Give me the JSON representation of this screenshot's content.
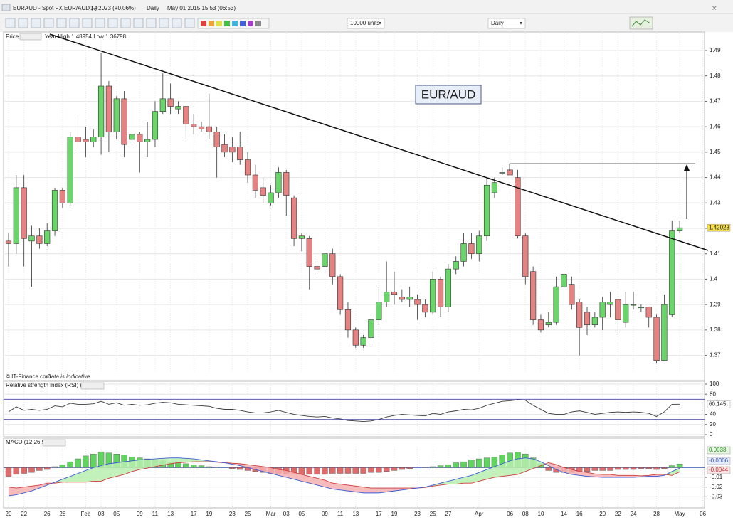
{
  "header": {
    "symbol": "EURAUD - Spot FX EUR/AUD (-)",
    "price": "1.42023 (+0.06%)",
    "period": "Daily",
    "time": "May 01 2015 15:53 (06:53)",
    "units": "10000 units",
    "interval": "Daily"
  },
  "chart_data": [
    {
      "type": "candlestick",
      "label": "Price",
      "subtitle": "Year High 1.48954 Low 1.36798",
      "title": "EUR/AUD",
      "source": "© IT-Finance.com",
      "source_note": "Data is indicative",
      "up_color": "#6ad66a",
      "down_color": "#e58282",
      "grid": true,
      "ylim": [
        1.364,
        1.497
      ],
      "yticks": [
        1.37,
        1.38,
        1.39,
        1.4,
        1.41,
        1.42,
        1.43,
        1.44,
        1.45,
        1.46,
        1.47,
        1.48,
        1.49
      ],
      "categories": [
        "20",
        null,
        "22",
        null,
        null,
        "26",
        null,
        "28",
        null,
        null,
        "Feb",
        null,
        "03",
        null,
        "05",
        null,
        null,
        "09",
        null,
        "11",
        null,
        "13",
        null,
        null,
        "17",
        null,
        "19",
        null,
        null,
        "23",
        null,
        "25",
        null,
        null,
        "Mar",
        null,
        "03",
        null,
        "05",
        null,
        null,
        "09",
        null,
        "11",
        null,
        "13",
        null,
        null,
        "17",
        null,
        "19",
        null,
        null,
        "23",
        null,
        "25",
        null,
        "27",
        null,
        null,
        null,
        "Apr",
        null,
        null,
        null,
        "06",
        null,
        "08",
        null,
        "10",
        null,
        null,
        "14",
        null,
        "16",
        null,
        null,
        "20",
        null,
        "22",
        null,
        "24",
        null,
        null,
        "28",
        null,
        null,
        "May",
        null,
        null,
        "06"
      ],
      "open": [
        1.415,
        1.414,
        1.436,
        1.415,
        1.417,
        1.414,
        1.419,
        1.435,
        1.43,
        1.456,
        1.455,
        1.454,
        1.456,
        1.476,
        1.458,
        1.471,
        1.455,
        1.457,
        1.454,
        1.455,
        1.466,
        1.471,
        1.467,
        1.468,
        1.461,
        1.46,
        1.46,
        1.458,
        1.453,
        1.452,
        1.452,
        1.447,
        1.441,
        1.436,
        1.43,
        1.434,
        1.442,
        1.432,
        1.416,
        1.416,
        1.405,
        1.405,
        1.41,
        1.401,
        1.388,
        1.38,
        1.374,
        1.377,
        1.384,
        1.391,
        1.395,
        1.393,
        1.392,
        1.392,
        1.39,
        1.387,
        1.4,
        1.389,
        1.404,
        1.407,
        1.414,
        1.41,
        1.417,
        1.434,
        1.442,
        1.443,
        1.44,
        1.417,
        1.403,
        1.384,
        1.382,
        1.383,
        1.397,
        1.398,
        1.391,
        1.387,
        1.382,
        1.385,
        1.39,
        1.392,
        1.383,
        1.39,
        1.389,
        1.389,
        1.385,
        1.368,
        1.386,
        1.419,
        null,
        null,
        null
      ],
      "high": [
        1.418,
        1.441,
        1.441,
        1.421,
        1.42,
        1.422,
        1.436,
        1.436,
        1.458,
        1.465,
        1.46,
        1.459,
        1.489,
        1.478,
        1.472,
        1.474,
        1.458,
        1.458,
        1.462,
        1.47,
        1.481,
        1.477,
        1.47,
        1.468,
        1.465,
        1.462,
        1.473,
        1.46,
        1.457,
        1.456,
        1.458,
        1.45,
        1.445,
        1.44,
        1.437,
        1.444,
        1.443,
        1.433,
        1.418,
        1.417,
        1.407,
        1.412,
        1.412,
        1.402,
        1.391,
        1.381,
        1.378,
        1.386,
        1.397,
        1.407,
        1.403,
        1.396,
        1.397,
        1.394,
        1.392,
        1.403,
        1.401,
        1.406,
        1.409,
        1.418,
        1.418,
        1.419,
        1.44,
        1.44,
        1.444,
        1.445,
        1.443,
        1.418,
        1.405,
        1.386,
        1.387,
        1.401,
        1.404,
        1.401,
        1.392,
        1.389,
        1.387,
        1.393,
        1.395,
        1.393,
        1.395,
        1.395,
        1.39,
        1.389,
        1.386,
        1.394,
        1.423,
        1.423,
        null,
        null,
        null
      ],
      "low": [
        1.405,
        1.41,
        1.405,
        1.397,
        1.412,
        1.413,
        1.417,
        1.428,
        1.429,
        1.451,
        1.448,
        1.452,
        1.449,
        1.45,
        1.455,
        1.448,
        1.452,
        1.442,
        1.448,
        1.452,
        1.465,
        1.465,
        1.465,
        1.455,
        1.457,
        1.458,
        1.455,
        1.44,
        1.448,
        1.446,
        1.445,
        1.438,
        1.432,
        1.43,
        1.429,
        1.432,
        1.425,
        1.413,
        1.411,
        1.396,
        1.402,
        1.403,
        1.398,
        1.386,
        1.377,
        1.373,
        1.373,
        1.375,
        1.382,
        1.389,
        1.39,
        1.391,
        1.389,
        1.384,
        1.385,
        1.386,
        1.385,
        1.387,
        1.402,
        1.405,
        1.408,
        1.407,
        1.415,
        1.432,
        1.441,
        1.438,
        1.416,
        1.398,
        1.382,
        1.379,
        1.381,
        1.382,
        1.39,
        1.388,
        1.37,
        1.378,
        1.381,
        1.38,
        1.385,
        1.378,
        1.381,
        1.388,
        1.387,
        1.381,
        1.367,
        1.368,
        1.385,
        1.418,
        null,
        null,
        null
      ],
      "close": [
        1.414,
        1.436,
        1.416,
        1.417,
        1.414,
        1.419,
        1.435,
        1.43,
        1.456,
        1.454,
        1.454,
        1.456,
        1.476,
        1.458,
        1.471,
        1.453,
        1.457,
        1.454,
        1.455,
        1.466,
        1.471,
        1.468,
        1.468,
        1.461,
        1.46,
        1.459,
        1.458,
        1.452,
        1.45,
        1.45,
        1.447,
        1.441,
        1.435,
        1.433,
        1.434,
        1.442,
        1.433,
        1.416,
        1.417,
        1.405,
        1.404,
        1.41,
        1.401,
        1.388,
        1.38,
        1.374,
        1.377,
        1.384,
        1.391,
        1.395,
        1.394,
        1.392,
        1.393,
        1.39,
        1.387,
        1.4,
        1.389,
        1.404,
        1.407,
        1.414,
        1.41,
        1.417,
        1.437,
        1.438,
        1.442,
        1.441,
        1.417,
        1.401,
        1.384,
        1.38,
        1.383,
        1.397,
        1.402,
        1.39,
        1.381,
        1.382,
        1.385,
        1.391,
        1.391,
        1.384,
        1.39,
        1.39,
        1.389,
        1.385,
        1.368,
        1.39,
        1.419,
        1.42023,
        null,
        null,
        null
      ]
    },
    {
      "type": "line",
      "title": "Relative strength index (RSI) (14)",
      "color": "#3a3a3a",
      "level_color": "#4040b0",
      "ylim": [
        0,
        100
      ],
      "yticks": [
        0,
        20,
        40,
        80,
        100
      ],
      "levels": [
        30,
        70
      ],
      "values": [
        45,
        55,
        48,
        50,
        48,
        50,
        57,
        55,
        62,
        60,
        60,
        61,
        66,
        60,
        63,
        58,
        60,
        58,
        59,
        62,
        64,
        63,
        60,
        59,
        58,
        57,
        56,
        52,
        50,
        50,
        48,
        45,
        43,
        43,
        45,
        48,
        44,
        40,
        38,
        36,
        35,
        36,
        33,
        31,
        28,
        27,
        26,
        27,
        30,
        35,
        38,
        40,
        39,
        38,
        37,
        42,
        40,
        45,
        47,
        50,
        49,
        52,
        58,
        62,
        66,
        67,
        69,
        68,
        58,
        50,
        42,
        40,
        40,
        45,
        47,
        44,
        40,
        42,
        44,
        45,
        44,
        45,
        44,
        42,
        36,
        45,
        60,
        60.145,
        null,
        null,
        null
      ]
    },
    {
      "type": "macd",
      "title": "MACD (12,26,9)",
      "up_color": "#5fd45f",
      "down_color": "#e06a6a",
      "macd_color": "#3b5bd6",
      "signal_color": "#d03a3a",
      "ylim": [
        -0.04,
        0.02
      ],
      "yticks": [
        -0.01,
        -0.02,
        -0.03
      ],
      "histogram": [
        -0.009,
        -0.007,
        -0.006,
        -0.005,
        -0.003,
        -0.002,
        0.001,
        0.003,
        0.006,
        0.009,
        0.012,
        0.014,
        0.016,
        0.015,
        0.014,
        0.013,
        0.011,
        0.01,
        0.009,
        0.008,
        0.007,
        0.006,
        0.005,
        0.004,
        0.003,
        0.002,
        0.001,
        0.0005,
        0,
        -0.001,
        -0.002,
        -0.003,
        -0.004,
        -0.005,
        -0.006,
        -0.006,
        -0.007,
        -0.007,
        -0.007,
        -0.007,
        -0.007,
        -0.007,
        -0.006,
        -0.006,
        -0.006,
        -0.006,
        -0.006,
        -0.005,
        -0.005,
        -0.004,
        -0.003,
        -0.002,
        -0.001,
        0,
        0.0005,
        0.001,
        0.002,
        0.003,
        0.005,
        0.006,
        0.008,
        0.009,
        0.01,
        0.011,
        0.013,
        0.015,
        0.016,
        0.014,
        0.01,
        0.004,
        -0.003,
        -0.005,
        -0.005,
        -0.005,
        -0.004,
        -0.004,
        -0.003,
        -0.003,
        -0.003,
        -0.002,
        -0.002,
        -0.002,
        -0.001,
        -0.001,
        -0.002,
        -0.001,
        0.002,
        0.0038,
        null,
        null,
        null
      ],
      "macd": [
        -0.029,
        -0.028,
        -0.026,
        -0.024,
        -0.021,
        -0.018,
        -0.015,
        -0.012,
        -0.009,
        -0.006,
        -0.003,
        0,
        0.002,
        0.004,
        0.005,
        0.006,
        0.007,
        0.008,
        0.0085,
        0.009,
        0.0095,
        0.01,
        0.01,
        0.0095,
        0.009,
        0.008,
        0.007,
        0.006,
        0.005,
        0.0035,
        0.002,
        0,
        -0.002,
        -0.004,
        -0.006,
        -0.008,
        -0.01,
        -0.012,
        -0.014,
        -0.016,
        -0.018,
        -0.02,
        -0.022,
        -0.023,
        -0.024,
        -0.025,
        -0.026,
        -0.026,
        -0.026,
        -0.025,
        -0.024,
        -0.023,
        -0.022,
        -0.021,
        -0.02,
        -0.018,
        -0.016,
        -0.014,
        -0.012,
        -0.01,
        -0.008,
        -0.005,
        -0.002,
        0.001,
        0.004,
        0.007,
        0.009,
        0.01,
        0.009,
        0.006,
        0.002,
        -0.002,
        -0.005,
        -0.007,
        -0.008,
        -0.009,
        -0.0095,
        -0.01,
        -0.01,
        -0.01,
        -0.01,
        -0.01,
        -0.0095,
        -0.009,
        -0.009,
        -0.008,
        -0.004,
        -0.0006,
        null,
        null,
        null
      ],
      "signal": [
        -0.02,
        -0.021,
        -0.02,
        -0.019,
        -0.018,
        -0.016,
        -0.016,
        -0.015,
        -0.015,
        -0.015,
        -0.015,
        -0.014,
        -0.014,
        -0.011,
        -0.009,
        -0.007,
        -0.004,
        -0.002,
        -0.0005,
        0.001,
        0.0025,
        0.004,
        0.005,
        0.0055,
        0.006,
        0.006,
        0.006,
        0.0055,
        0.005,
        0.0045,
        0.004,
        0.003,
        0.002,
        0.001,
        0,
        -0.002,
        -0.003,
        -0.005,
        -0.007,
        -0.009,
        -0.011,
        -0.013,
        -0.016,
        -0.017,
        -0.018,
        -0.019,
        -0.02,
        -0.021,
        -0.021,
        -0.021,
        -0.021,
        -0.021,
        -0.021,
        -0.021,
        -0.0205,
        -0.019,
        -0.018,
        -0.017,
        -0.017,
        -0.016,
        -0.016,
        -0.014,
        -0.012,
        -0.01,
        -0.009,
        -0.008,
        -0.007,
        -0.004,
        -0.001,
        0.002,
        0.005,
        0.003,
        0,
        -0.002,
        -0.004,
        -0.005,
        -0.0065,
        -0.007,
        -0.007,
        -0.008,
        -0.008,
        -0.008,
        -0.0085,
        -0.008,
        -0.007,
        -0.007,
        -0.008,
        -0.0044,
        null,
        null,
        null
      ]
    }
  ]
}
